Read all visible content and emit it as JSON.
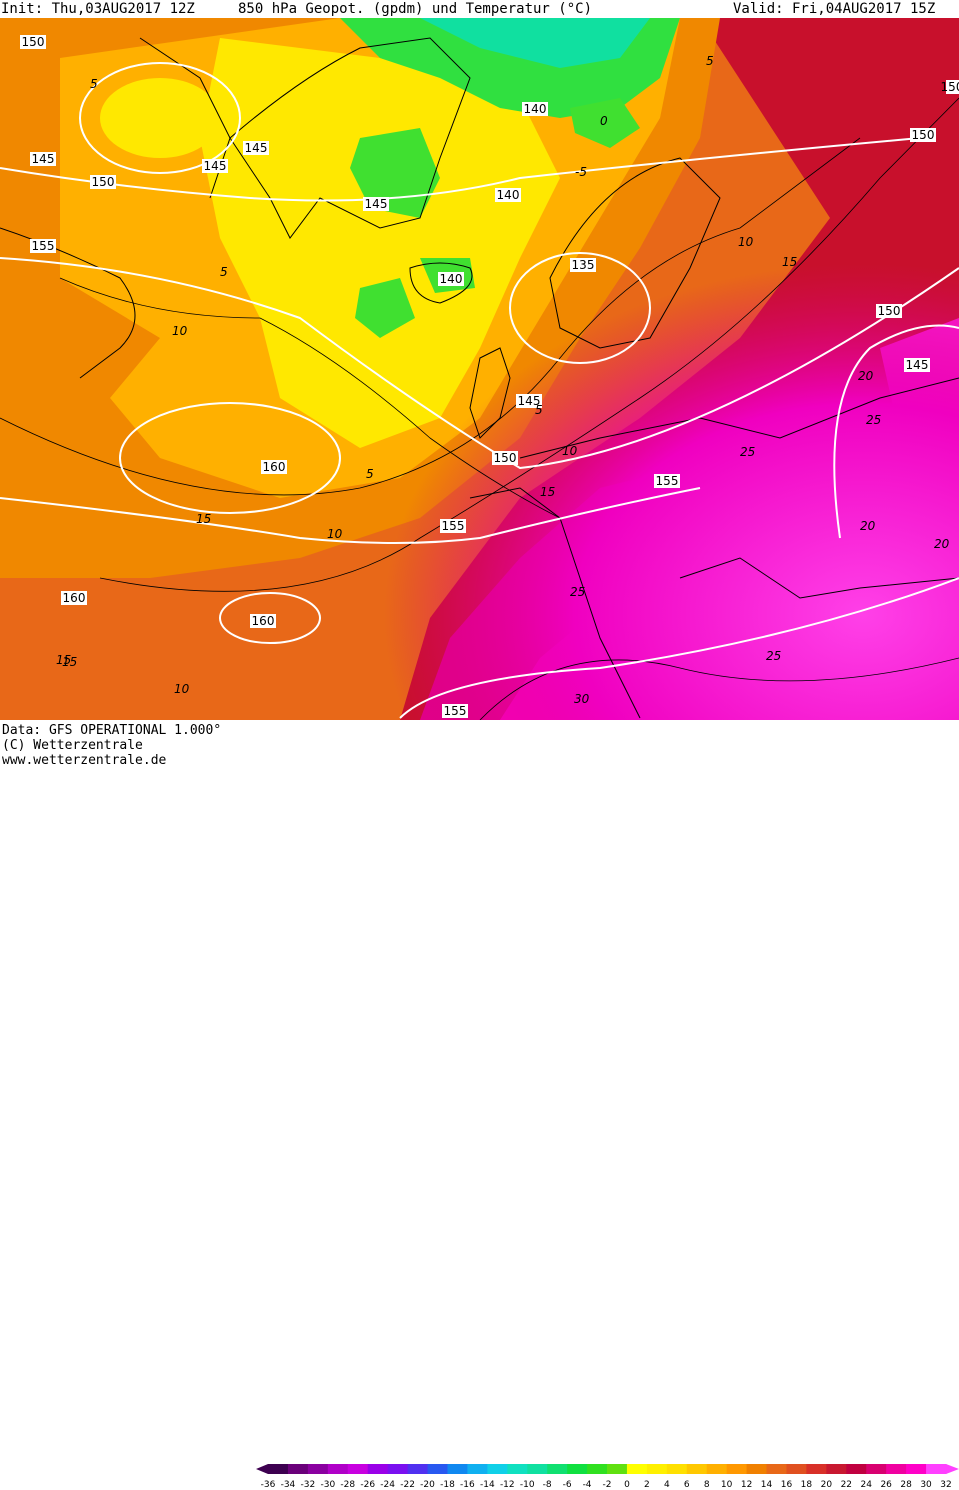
{
  "header": {
    "init": "Init: Thu,03AUG2017 12Z",
    "title": "850 hPa Geopot. (gpdm) und Temperatur (°C)",
    "valid": "Valid: Fri,04AUG2017 15Z"
  },
  "footer": {
    "data_source": "Data: GFS OPERATIONAL 1.000°",
    "copyright": "(C) Wetterzentrale",
    "website": "www.wetterzentrale.de"
  },
  "colorbar": {
    "labels": [
      "-36",
      "-34",
      "-32",
      "-30",
      "-28",
      "-26",
      "-24",
      "-22",
      "-20",
      "-18",
      "-16",
      "-14",
      "-12",
      "-10",
      "-8",
      "-6",
      "-4",
      "-2",
      "0",
      "2",
      "4",
      "6",
      "8",
      "10",
      "12",
      "14",
      "16",
      "18",
      "20",
      "22",
      "24",
      "26",
      "28",
      "30",
      "32"
    ],
    "colors": [
      "#3d0050",
      "#6a007a",
      "#8a00a0",
      "#b000c8",
      "#c800e0",
      "#9a00e8",
      "#7a10f0",
      "#5030f0",
      "#2858f0",
      "#1088f0",
      "#10b0f0",
      "#10d0e8",
      "#10e0c0",
      "#10e0a0",
      "#10e070",
      "#10e040",
      "#30e020",
      "#60e010",
      "#ffff00",
      "#fff000",
      "#ffe000",
      "#ffc800",
      "#ffb000",
      "#ff9800",
      "#f08000",
      "#e86818",
      "#e05020",
      "#d83028",
      "#c81830",
      "#c00040",
      "#d80070",
      "#f000a0",
      "#ff00c8",
      "#ff40ff"
    ]
  },
  "map": {
    "geopotential_labels": [
      "150",
      "145",
      "150",
      "145",
      "145",
      "155",
      "145",
      "140",
      "140",
      "140",
      "135",
      "150",
      "150",
      "145",
      "145",
      "150",
      "155",
      "160",
      "155",
      "160",
      "160",
      "155",
      "150"
    ],
    "temperature_labels": [
      "5",
      "5",
      "0",
      "-5",
      "5",
      "5",
      "10",
      "10",
      "15",
      "15",
      "10",
      "15",
      "5",
      "10",
      "15",
      "10",
      "15",
      "20",
      "25",
      "20",
      "25",
      "25",
      "30",
      "25",
      "20"
    ]
  }
}
